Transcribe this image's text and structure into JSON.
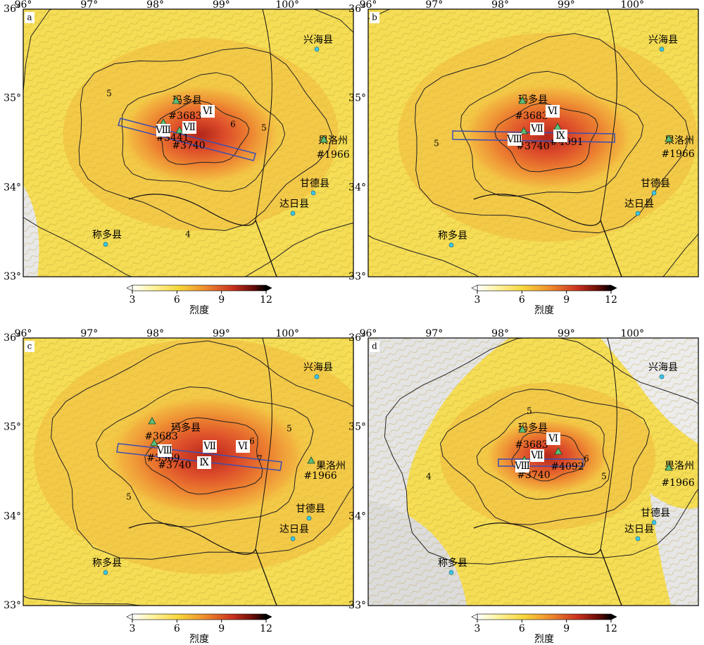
{
  "panels": [
    {
      "letter": "a",
      "lon_ticks": [
        "96°",
        "97°",
        "98°",
        "99°",
        "100°"
      ],
      "lat_ticks": [
        "36°",
        "35°",
        "34°",
        "33°"
      ],
      "cities": [
        "兴海县",
        "玛多县",
        "果洛州",
        "甘德县",
        "达日县",
        "称多县"
      ],
      "stations": [
        "#3683",
        "#3441",
        "#3740",
        "#1966"
      ],
      "intensity_labels": [
        "Ⅵ",
        "Ⅶ",
        "Ⅷ"
      ],
      "contour_labels": [
        "5",
        "6",
        "5",
        "4"
      ],
      "colorbar": {
        "ticks": [
          3,
          6,
          9,
          12
        ],
        "label": "烈度"
      }
    },
    {
      "letter": "b",
      "lon_ticks": [
        "96°",
        "97°",
        "98°",
        "99°",
        "100°"
      ],
      "lat_ticks": [
        "36°",
        "35°",
        "34°",
        "33°"
      ],
      "cities": [
        "兴海县",
        "玛多县",
        "果洛州",
        "甘德县",
        "达日县",
        "称多县"
      ],
      "stations": [
        "#3683",
        "#3740",
        "#4091",
        "#1966"
      ],
      "intensity_labels": [
        "Ⅵ",
        "Ⅶ",
        "Ⅷ",
        "Ⅸ"
      ],
      "contour_labels": [
        "5"
      ],
      "colorbar": {
        "ticks": [
          3,
          6,
          9,
          12
        ],
        "label": "烈度"
      }
    },
    {
      "letter": "c",
      "lon_ticks": [
        "96°",
        "97°",
        "98°",
        "99°",
        "100°"
      ],
      "lat_ticks": [
        "36°",
        "35°",
        "34°",
        "33°"
      ],
      "cities": [
        "兴海县",
        "玛多县",
        "果洛州",
        "甘德县",
        "达日县",
        "称多县"
      ],
      "stations": [
        "#3683",
        "#3569",
        "#3740",
        "#1966"
      ],
      "intensity_labels": [
        "Ⅷ",
        "Ⅶ",
        "Ⅵ",
        "Ⅸ"
      ],
      "contour_labels": [
        "6",
        "7",
        "5",
        "5"
      ],
      "colorbar": {
        "ticks": [
          3,
          6,
          9,
          12
        ],
        "label": "烈度"
      }
    },
    {
      "letter": "d",
      "lon_ticks": [
        "96°",
        "97°",
        "98°",
        "99°",
        "100°"
      ],
      "lat_ticks": [
        "36°",
        "35°",
        "34°",
        "33°"
      ],
      "cities": [
        "兴海县",
        "玛多县",
        "果洛州",
        "甘德县",
        "达日县",
        "称多县"
      ],
      "stations": [
        "#3683",
        "#4092",
        "#3740",
        "#1966"
      ],
      "intensity_labels": [
        "Ⅵ",
        "Ⅶ",
        "Ⅷ"
      ],
      "contour_labels": [
        "5",
        "6",
        "5",
        "4"
      ],
      "colorbar": {
        "ticks": [
          3,
          6,
          9,
          12
        ],
        "label": "烈度"
      }
    }
  ]
}
